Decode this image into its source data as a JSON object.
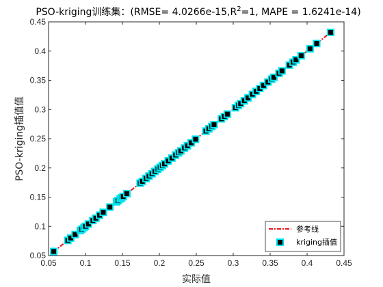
{
  "chart_data": {
    "type": "scatter",
    "title": {
      "prefix": "PSO-kriging训练集：(RMSE= 4.0266e-15,R",
      "sup": "2",
      "suffix": "=1, MAPE = 1.6241e-14)"
    },
    "xlabel": "实际值",
    "ylabel": "PSO-kriging插值值",
    "xlim": [
      0.05,
      0.45
    ],
    "ylim": [
      0.05,
      0.45
    ],
    "xticks": [
      "0.05",
      "0.1",
      "0.15",
      "0.2",
      "0.25",
      "0.3",
      "0.35",
      "0.4",
      "0.45"
    ],
    "yticks": [
      "0.05",
      "0.1",
      "0.15",
      "0.2",
      "0.25",
      "0.3",
      "0.35",
      "0.4",
      "0.45"
    ],
    "grid": false,
    "legend_position": "bottom-right",
    "reference_line": {
      "name": "参考线",
      "color": "#e8141b",
      "style": "dash-dot",
      "x": [
        0.057,
        0.432
      ],
      "y": [
        0.057,
        0.432
      ]
    },
    "series": [
      {
        "name": "kriging插值",
        "marker_face": "#000000",
        "marker_edge": "#00e5ee",
        "x": [
          0.057,
          0.076,
          0.08,
          0.086,
          0.093,
          0.095,
          0.098,
          0.1,
          0.104,
          0.11,
          0.114,
          0.119,
          0.124,
          0.133,
          0.142,
          0.144,
          0.147,
          0.149,
          0.151,
          0.156,
          0.174,
          0.177,
          0.182,
          0.186,
          0.19,
          0.194,
          0.198,
          0.201,
          0.204,
          0.207,
          0.212,
          0.217,
          0.222,
          0.226,
          0.229,
          0.234,
          0.238,
          0.243,
          0.249,
          0.263,
          0.267,
          0.271,
          0.274,
          0.284,
          0.288,
          0.292,
          0.303,
          0.307,
          0.31,
          0.315,
          0.32,
          0.326,
          0.331,
          0.336,
          0.341,
          0.347,
          0.352,
          0.355,
          0.362,
          0.366,
          0.376,
          0.381,
          0.385,
          0.392,
          0.404,
          0.413,
          0.432
        ],
        "y": [
          0.057,
          0.076,
          0.08,
          0.086,
          0.093,
          0.095,
          0.098,
          0.1,
          0.104,
          0.11,
          0.114,
          0.119,
          0.124,
          0.133,
          0.142,
          0.144,
          0.147,
          0.149,
          0.151,
          0.156,
          0.174,
          0.177,
          0.182,
          0.186,
          0.19,
          0.194,
          0.198,
          0.201,
          0.204,
          0.207,
          0.212,
          0.217,
          0.222,
          0.226,
          0.229,
          0.234,
          0.238,
          0.243,
          0.249,
          0.263,
          0.267,
          0.271,
          0.274,
          0.284,
          0.288,
          0.292,
          0.303,
          0.307,
          0.31,
          0.315,
          0.32,
          0.326,
          0.331,
          0.336,
          0.341,
          0.347,
          0.352,
          0.355,
          0.362,
          0.366,
          0.376,
          0.381,
          0.385,
          0.392,
          0.404,
          0.413,
          0.432
        ]
      }
    ]
  }
}
